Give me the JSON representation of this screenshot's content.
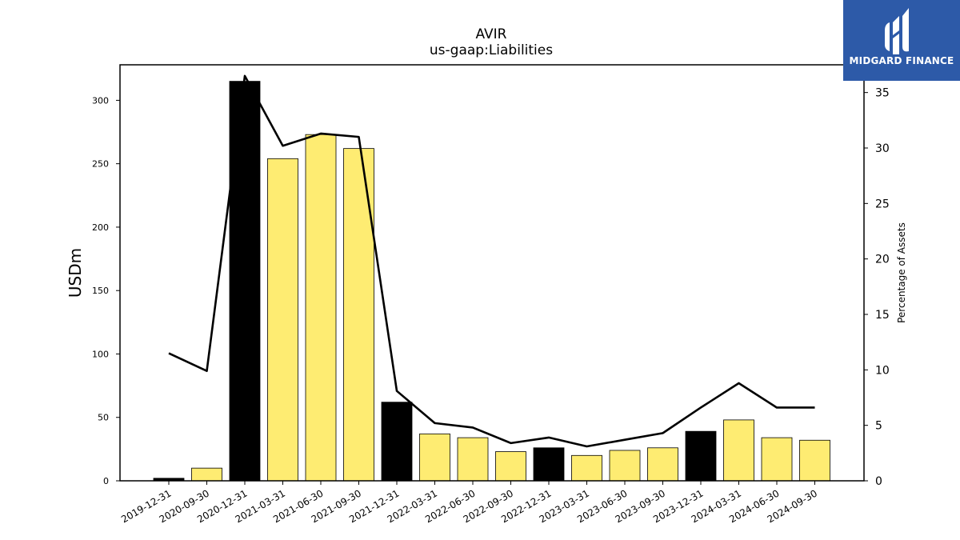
{
  "chart_data": {
    "type": "bar",
    "title": "AVIR",
    "subtitle": "us-gaap:Liabilities",
    "ylabel": "USDm",
    "y2label": "Percentage of Assets",
    "ylim": [
      0,
      328
    ],
    "y2lim": [
      0,
      37.5
    ],
    "yticks": [
      0,
      50,
      100,
      150,
      200,
      250,
      300
    ],
    "y2ticks": [
      0,
      5,
      10,
      15,
      20,
      25,
      30,
      35
    ],
    "categories": [
      "2019-12-31",
      "2020-09-30",
      "2020-12-31",
      "2021-03-31",
      "2021-06-30",
      "2021-09-30",
      "2021-12-31",
      "2022-03-31",
      "2022-06-30",
      "2022-09-30",
      "2022-12-31",
      "2023-03-31",
      "2023-06-30",
      "2023-09-30",
      "2023-12-31",
      "2024-03-31",
      "2024-06-30",
      "2024-09-30"
    ],
    "series": [
      {
        "kind": "bar",
        "values": [
          2,
          10,
          315,
          254,
          273,
          262,
          62,
          37,
          34,
          23,
          26,
          20,
          24,
          26,
          39,
          48,
          34,
          32
        ],
        "highlight": [
          true,
          false,
          true,
          false,
          false,
          false,
          true,
          false,
          false,
          false,
          true,
          false,
          false,
          false,
          true,
          false,
          false,
          false
        ],
        "colors": {
          "fiscal_year_end": "#000000",
          "quarter": "#feec72"
        }
      },
      {
        "kind": "line",
        "axis": "right",
        "values": [
          11.5,
          9.9,
          36.5,
          30.2,
          31.3,
          31.0,
          8.1,
          5.2,
          4.8,
          3.4,
          3.9,
          3.1,
          3.7,
          4.3,
          6.6,
          8.8,
          6.6,
          6.6
        ],
        "color": "#000000"
      }
    ],
    "grid": false,
    "legend": "none"
  },
  "logo": {
    "text": "MIDGARD FINANCE",
    "bg": "#2d5aa8"
  }
}
